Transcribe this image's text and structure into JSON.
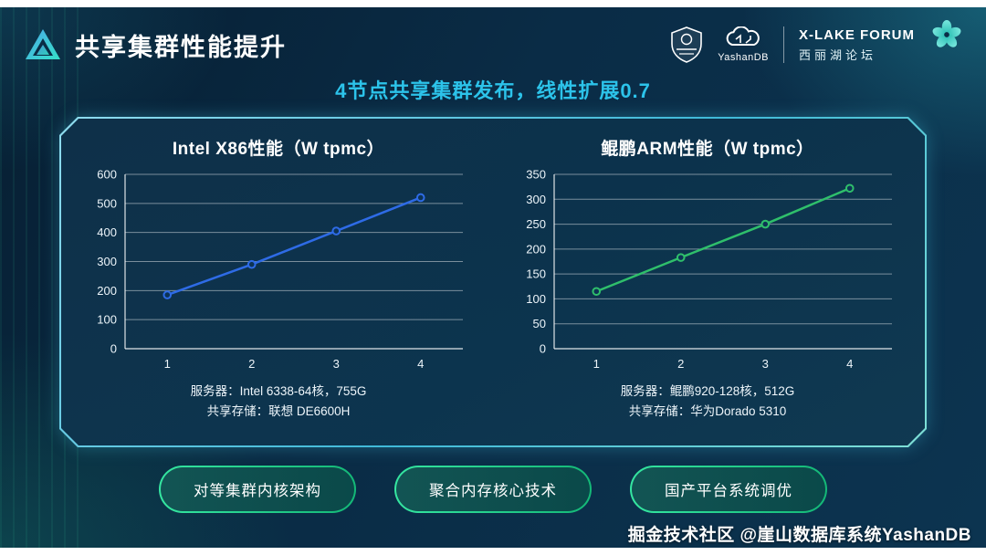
{
  "slide": {
    "title": "共享集群性能提升",
    "subtitle": "4节点共享集群发布，线性扩展0.7",
    "watermark": "掘金技术社区 @崖山数据库系统YashanDB"
  },
  "header": {
    "yashandb_label": "YashanDB",
    "forum_title": "X-LAKE FORUM",
    "forum_subtitle": "西丽湖论坛"
  },
  "colors": {
    "accent_cyan": "#2cc3ea",
    "panel_border": "#6fd3e8",
    "pill_border_green": "#2ade8e",
    "intel_line_blue": "#2e6be6",
    "arm_line_green": "#2fbf6b"
  },
  "chart_data": [
    {
      "type": "line",
      "title": "Intel X86性能（W tpmc）",
      "x": [
        1,
        2,
        3,
        4
      ],
      "values": [
        185,
        290,
        405,
        520
      ],
      "ylim": [
        0,
        600
      ],
      "yticks": [
        0,
        100,
        200,
        300,
        400,
        500,
        600
      ],
      "line_color": "#2e6be6",
      "grid": true,
      "caption_line1": "服务器：Intel 6338-64核，755G",
      "caption_line2": "共享存储：联想 DE6600H"
    },
    {
      "type": "line",
      "title": "鲲鹏ARM性能（W tpmc）",
      "x": [
        1,
        2,
        3,
        4
      ],
      "values": [
        115,
        183,
        250,
        322
      ],
      "ylim": [
        0,
        350
      ],
      "yticks": [
        0,
        50,
        100,
        150,
        200,
        250,
        300,
        350
      ],
      "line_color": "#2fbf6b",
      "grid": true,
      "caption_line1": "服务器：鲲鹏920-128核，512G",
      "caption_line2": "共享存储：华为Dorado 5310"
    }
  ],
  "pills": [
    {
      "label": "对等集群内核架构"
    },
    {
      "label": "聚合内存核心技术"
    },
    {
      "label": "国产平台系统调优"
    }
  ]
}
